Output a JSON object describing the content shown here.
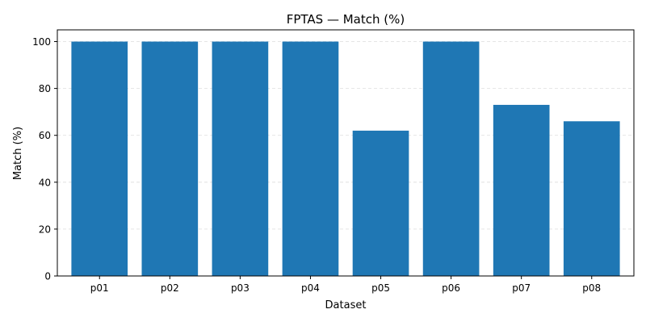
{
  "chart_data": {
    "type": "bar",
    "title": "FPTAS — Match (%)",
    "xlabel": "Dataset",
    "ylabel": "Match (%)",
    "categories": [
      "p01",
      "p02",
      "p03",
      "p04",
      "p05",
      "p06",
      "p07",
      "p08"
    ],
    "values": [
      100,
      100,
      100,
      100,
      62,
      100,
      73,
      66
    ],
    "ylim": [
      0,
      105
    ],
    "yticks": [
      0,
      20,
      40,
      60,
      80,
      100
    ],
    "grid": "y-dashed",
    "bar_color": "#1f77b4",
    "grid_color": "#dddddd"
  }
}
